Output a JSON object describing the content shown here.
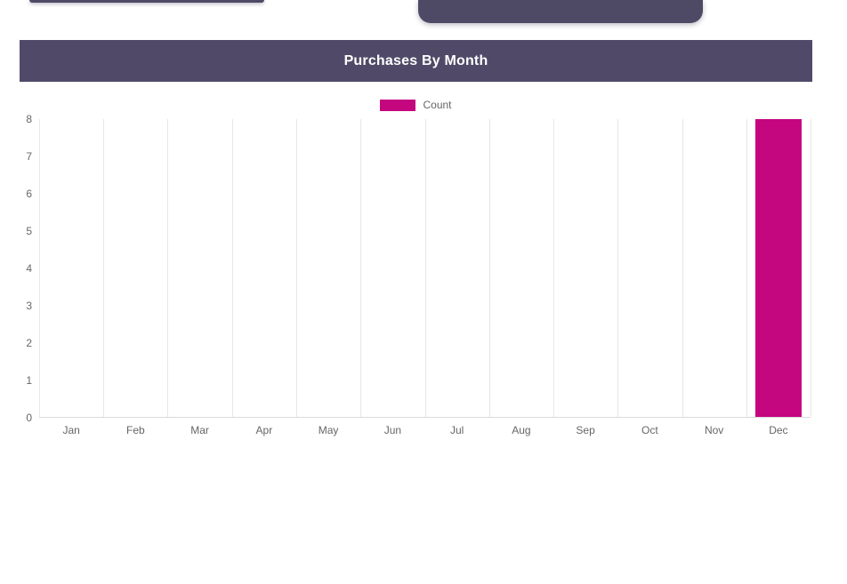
{
  "card": {
    "title": "Purchases By Month"
  },
  "chart_data": {
    "type": "bar",
    "title": "Purchases By Month",
    "legend": "Count",
    "legend_position": "top",
    "categories": [
      "Jan",
      "Feb",
      "Mar",
      "Apr",
      "May",
      "Jun",
      "Jul",
      "Aug",
      "Sep",
      "Oct",
      "Nov",
      "Dec"
    ],
    "values": [
      0,
      0,
      0,
      0,
      0,
      0,
      0,
      0,
      0,
      0,
      0,
      8
    ],
    "ylim": [
      0,
      8
    ],
    "y_ticks": [
      0,
      1,
      2,
      3,
      4,
      5,
      6,
      7,
      8
    ],
    "grid": true,
    "bar_color": "#c4067f",
    "colors": {
      "header_bg": "#504a68",
      "partial_panel_bg": "#4e4a66",
      "axis_label": "#666666",
      "gridline": "#e7e7e7"
    }
  }
}
